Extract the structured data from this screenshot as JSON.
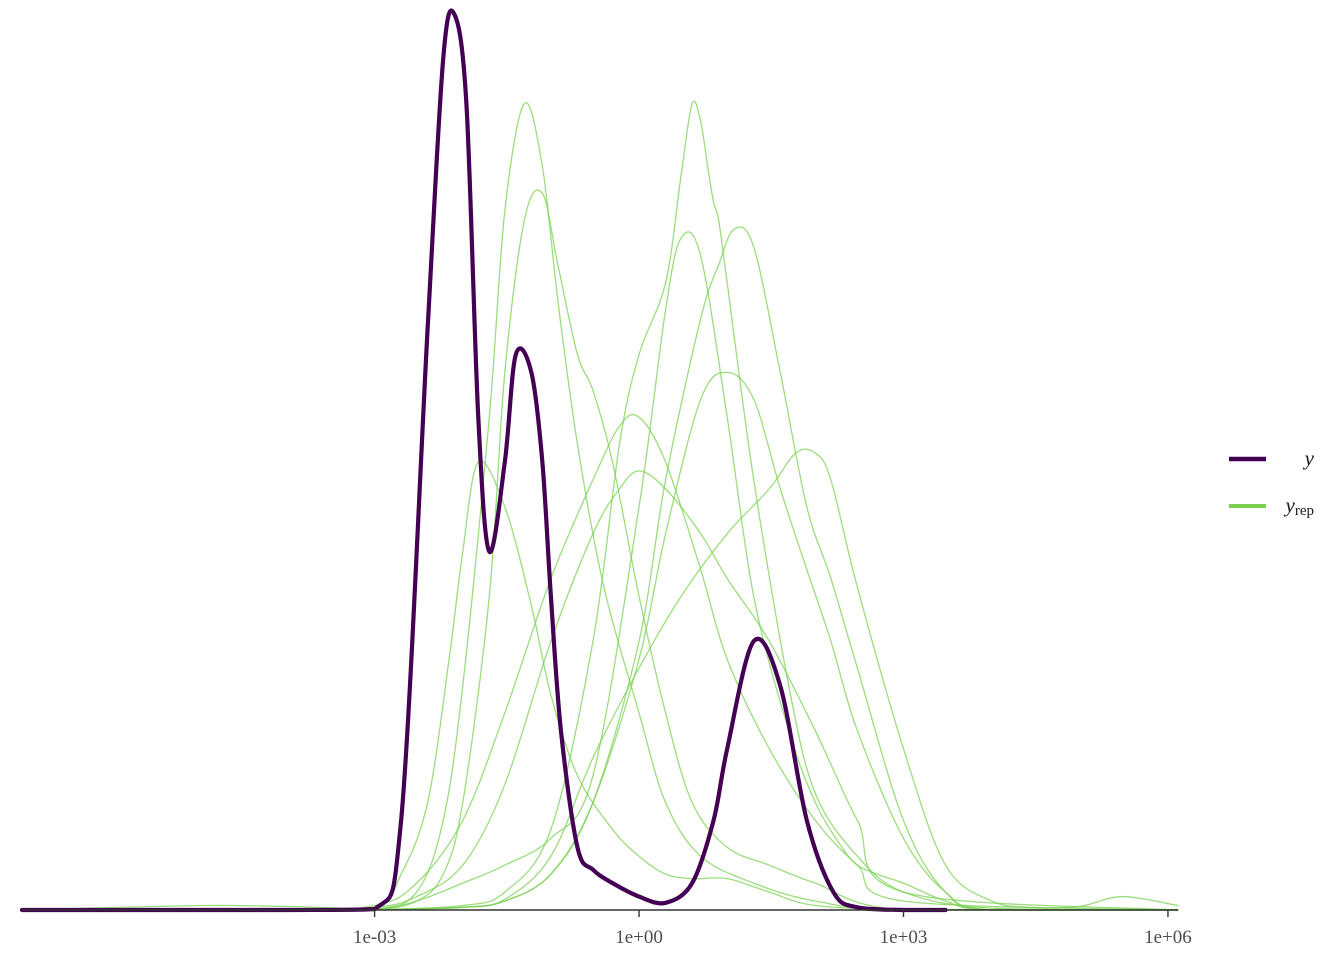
{
  "chart_data": {
    "type": "line",
    "title": "",
    "xlabel": "",
    "ylabel": "",
    "x_scale": "log10",
    "xlim": [
      1e-07,
      1300000
    ],
    "ylim": [
      0,
      1.0
    ],
    "grid": false,
    "x_ticks": [
      {
        "value": 0.001,
        "label": "1e-03"
      },
      {
        "value": 1,
        "label": "1e+00"
      },
      {
        "value": 1000,
        "label": "1e+03"
      },
      {
        "value": 1000000,
        "label": "1e+06"
      }
    ],
    "legend": {
      "position": "right",
      "entries": [
        {
          "key": "y",
          "label": "y",
          "subscript": "",
          "color": "#440154"
        },
        {
          "key": "yrep",
          "label": "y",
          "subscript": "rep",
          "color": "#7ad151"
        }
      ]
    },
    "series": [
      {
        "key": "y",
        "color": "#440154",
        "x": [
          1e-07,
          0.0001,
          0.001,
          0.002,
          0.004,
          0.006,
          0.008,
          0.011,
          0.015,
          0.02,
          0.03,
          0.04,
          0.06,
          0.08,
          0.1,
          0.13,
          0.2,
          0.3,
          0.5,
          1,
          2,
          4,
          7,
          10,
          20,
          40,
          80,
          160,
          300,
          1000,
          2000,
          3000
        ],
        "y": [
          0,
          0,
          0.001,
          0.1,
          0.65,
          0.95,
          1.0,
          0.9,
          0.55,
          0.4,
          0.5,
          0.62,
          0.6,
          0.5,
          0.35,
          0.2,
          0.07,
          0.045,
          0.03,
          0.015,
          0.008,
          0.03,
          0.1,
          0.18,
          0.3,
          0.25,
          0.1,
          0.02,
          0.003,
          0,
          0,
          0
        ]
      },
      {
        "key": "yrep",
        "color": "#7ad151",
        "x": [
          1e-07,
          1e-05,
          0.0001,
          0.001,
          0.002,
          0.004,
          0.007,
          0.01,
          0.015,
          0.03,
          0.06,
          0.1,
          0.2,
          0.5,
          1,
          2,
          4,
          10,
          30,
          100,
          1000,
          100000,
          1300000
        ],
        "y": [
          0,
          0.005,
          0.004,
          0.003,
          0.04,
          0.12,
          0.28,
          0.4,
          0.5,
          0.45,
          0.34,
          0.24,
          0.15,
          0.09,
          0.06,
          0.04,
          0.035,
          0.035,
          0.02,
          0.005,
          0.001,
          0,
          0
        ]
      },
      {
        "key": "yrep",
        "color": "#7ad151",
        "x": [
          1e-07,
          0.0001,
          0.001,
          0.003,
          0.006,
          0.01,
          0.02,
          0.03,
          0.05,
          0.08,
          0.12,
          0.2,
          0.4,
          1,
          2,
          5,
          20,
          100,
          1000,
          1300000
        ],
        "y": [
          0,
          0,
          0.001,
          0.02,
          0.1,
          0.25,
          0.55,
          0.78,
          0.9,
          0.83,
          0.68,
          0.52,
          0.36,
          0.22,
          0.12,
          0.06,
          0.03,
          0.01,
          0,
          0
        ]
      },
      {
        "key": "yrep",
        "color": "#7ad151",
        "x": [
          1e-07,
          0.0001,
          0.001,
          0.003,
          0.006,
          0.01,
          0.02,
          0.03,
          0.05,
          0.08,
          0.12,
          0.2,
          0.3,
          0.5,
          1,
          2,
          4,
          10,
          30,
          100,
          1000,
          1300000
        ],
        "y": [
          0,
          0,
          0.001,
          0.01,
          0.04,
          0.12,
          0.35,
          0.6,
          0.77,
          0.8,
          0.72,
          0.62,
          0.58,
          0.5,
          0.35,
          0.22,
          0.12,
          0.07,
          0.05,
          0.03,
          0,
          0
        ]
      },
      {
        "key": "yrep",
        "color": "#7ad151",
        "x": [
          1e-07,
          0.0001,
          0.001,
          0.003,
          0.01,
          0.03,
          0.1,
          0.3,
          0.6,
          1,
          2,
          5,
          10,
          30,
          100,
          300,
          1000,
          1300000
        ],
        "y": [
          0,
          0,
          0.005,
          0.03,
          0.1,
          0.22,
          0.37,
          0.48,
          0.54,
          0.55,
          0.5,
          0.38,
          0.28,
          0.18,
          0.1,
          0.05,
          0.01,
          0
        ]
      },
      {
        "key": "yrep",
        "color": "#7ad151",
        "x": [
          1e-07,
          0.0001,
          0.001,
          0.003,
          0.01,
          0.03,
          0.1,
          0.3,
          0.6,
          1,
          2,
          5,
          10,
          30,
          100,
          300,
          1000,
          1300000
        ],
        "y": [
          0,
          0,
          0.003,
          0.015,
          0.05,
          0.14,
          0.3,
          0.42,
          0.47,
          0.49,
          0.47,
          0.42,
          0.37,
          0.3,
          0.2,
          0.1,
          0.02,
          0
        ]
      },
      {
        "key": "yrep",
        "color": "#7ad151",
        "x": [
          1e-07,
          0.0001,
          0.001,
          0.003,
          0.01,
          0.03,
          0.1,
          0.3,
          1,
          2,
          3,
          5,
          10,
          20,
          50,
          100,
          200,
          300,
          500,
          1000,
          3000,
          10000,
          1300000
        ],
        "y": [
          0,
          0,
          0.001,
          0.01,
          0.03,
          0.05,
          0.08,
          0.15,
          0.45,
          0.67,
          0.75,
          0.73,
          0.55,
          0.35,
          0.2,
          0.12,
          0.07,
          0.05,
          0.04,
          0.03,
          0.01,
          0,
          0
        ]
      },
      {
        "key": "yrep",
        "color": "#7ad151",
        "x": [
          1e-07,
          0.0001,
          0.001,
          0.01,
          0.03,
          0.1,
          0.3,
          0.6,
          1,
          2,
          3,
          4,
          5,
          6,
          7,
          8,
          10,
          20,
          50,
          100,
          300,
          1000,
          10000,
          1300000
        ],
        "y": [
          0,
          0,
          0.0005,
          0.005,
          0.02,
          0.09,
          0.3,
          0.52,
          0.62,
          0.7,
          0.82,
          0.9,
          0.88,
          0.83,
          0.79,
          0.77,
          0.7,
          0.48,
          0.25,
          0.13,
          0.06,
          0.02,
          0.002,
          0
        ]
      },
      {
        "key": "yrep",
        "color": "#7ad151",
        "x": [
          1e-07,
          0.0001,
          0.001,
          0.01,
          0.03,
          0.1,
          0.3,
          1,
          2,
          5,
          8,
          12,
          20,
          40,
          80,
          150,
          300,
          1000,
          3000,
          10000,
          1300000
        ],
        "y": [
          0,
          0,
          0.0005,
          0.003,
          0.01,
          0.04,
          0.12,
          0.3,
          0.48,
          0.66,
          0.72,
          0.76,
          0.74,
          0.6,
          0.45,
          0.37,
          0.27,
          0.1,
          0.02,
          0,
          0
        ]
      },
      {
        "key": "yrep",
        "color": "#7ad151",
        "x": [
          1e-07,
          0.0001,
          0.001,
          0.01,
          0.03,
          0.1,
          0.3,
          1,
          2,
          5,
          10,
          20,
          40,
          80,
          150,
          300,
          1000,
          3000,
          10000,
          1300000
        ],
        "y": [
          0,
          0,
          0.0005,
          0.003,
          0.01,
          0.04,
          0.12,
          0.28,
          0.42,
          0.57,
          0.6,
          0.57,
          0.47,
          0.38,
          0.3,
          0.2,
          0.08,
          0.02,
          0,
          0
        ]
      },
      {
        "key": "yrep",
        "color": "#7ad151",
        "x": [
          1e-07,
          0.0001,
          0.001,
          0.01,
          0.03,
          0.1,
          0.3,
          1,
          3,
          10,
          30,
          60,
          100,
          150,
          300,
          1000,
          3000,
          10000,
          30000,
          100000,
          300000,
          1300000
        ],
        "y": [
          0,
          0,
          0.0005,
          0.003,
          0.012,
          0.06,
          0.17,
          0.27,
          0.35,
          0.42,
          0.47,
          0.51,
          0.51,
          0.48,
          0.36,
          0.18,
          0.05,
          0.01,
          0.003,
          0.004,
          0.015,
          0.005
        ]
      }
    ]
  }
}
